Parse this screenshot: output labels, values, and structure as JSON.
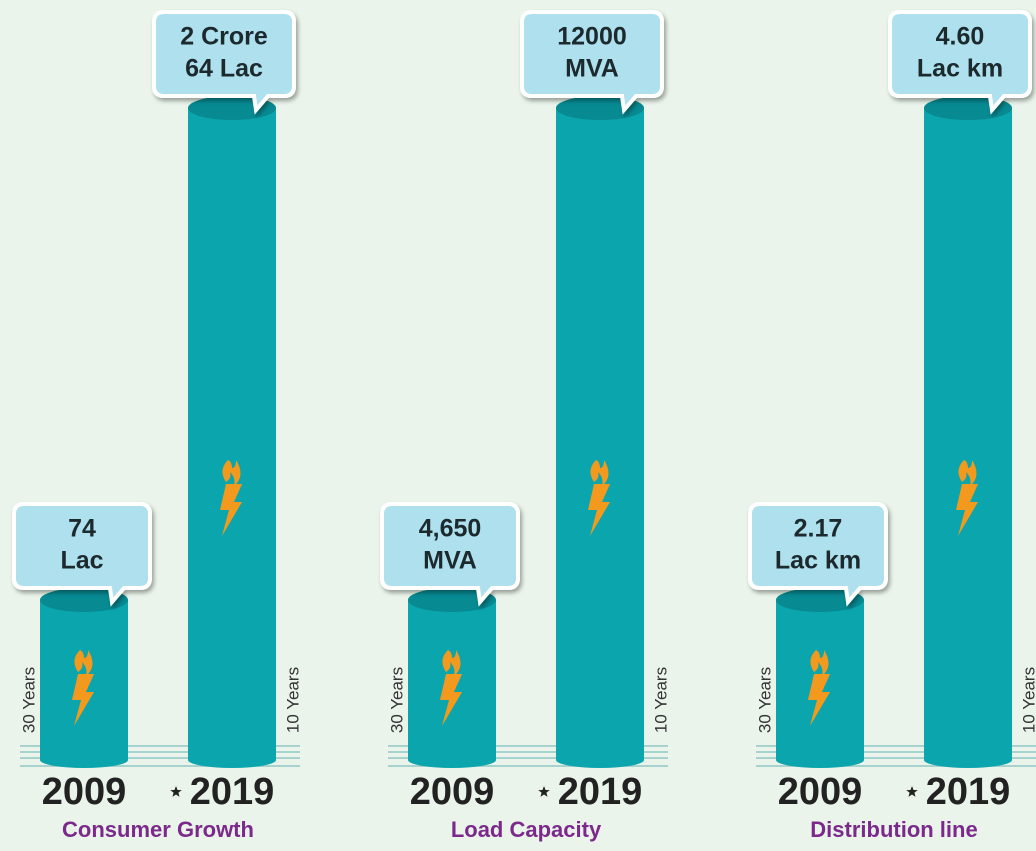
{
  "panels": [
    {
      "title": "Consumer Growth",
      "bars": [
        {
          "year": "2009",
          "value_lines": [
            "74",
            "Lac"
          ],
          "duration": "30 Years"
        },
        {
          "year": "2019",
          "value_lines": [
            "2 Crore",
            "64 Lac"
          ],
          "duration": "10 Years"
        }
      ]
    },
    {
      "title": "Load Capacity",
      "bars": [
        {
          "year": "2009",
          "value_lines": [
            "4,650",
            "MVA"
          ],
          "duration": "30 Years"
        },
        {
          "year": "2019",
          "value_lines": [
            "12000",
            "MVA"
          ],
          "duration": "10 Years"
        }
      ]
    },
    {
      "title": "Distribution line",
      "bars": [
        {
          "year": "2009",
          "value_lines": [
            "2.17",
            "Lac km"
          ],
          "duration": "30 Years"
        },
        {
          "year": "2019",
          "value_lines": [
            "4.60",
            "Lac km"
          ],
          "duration": "10 Years"
        }
      ]
    }
  ]
}
